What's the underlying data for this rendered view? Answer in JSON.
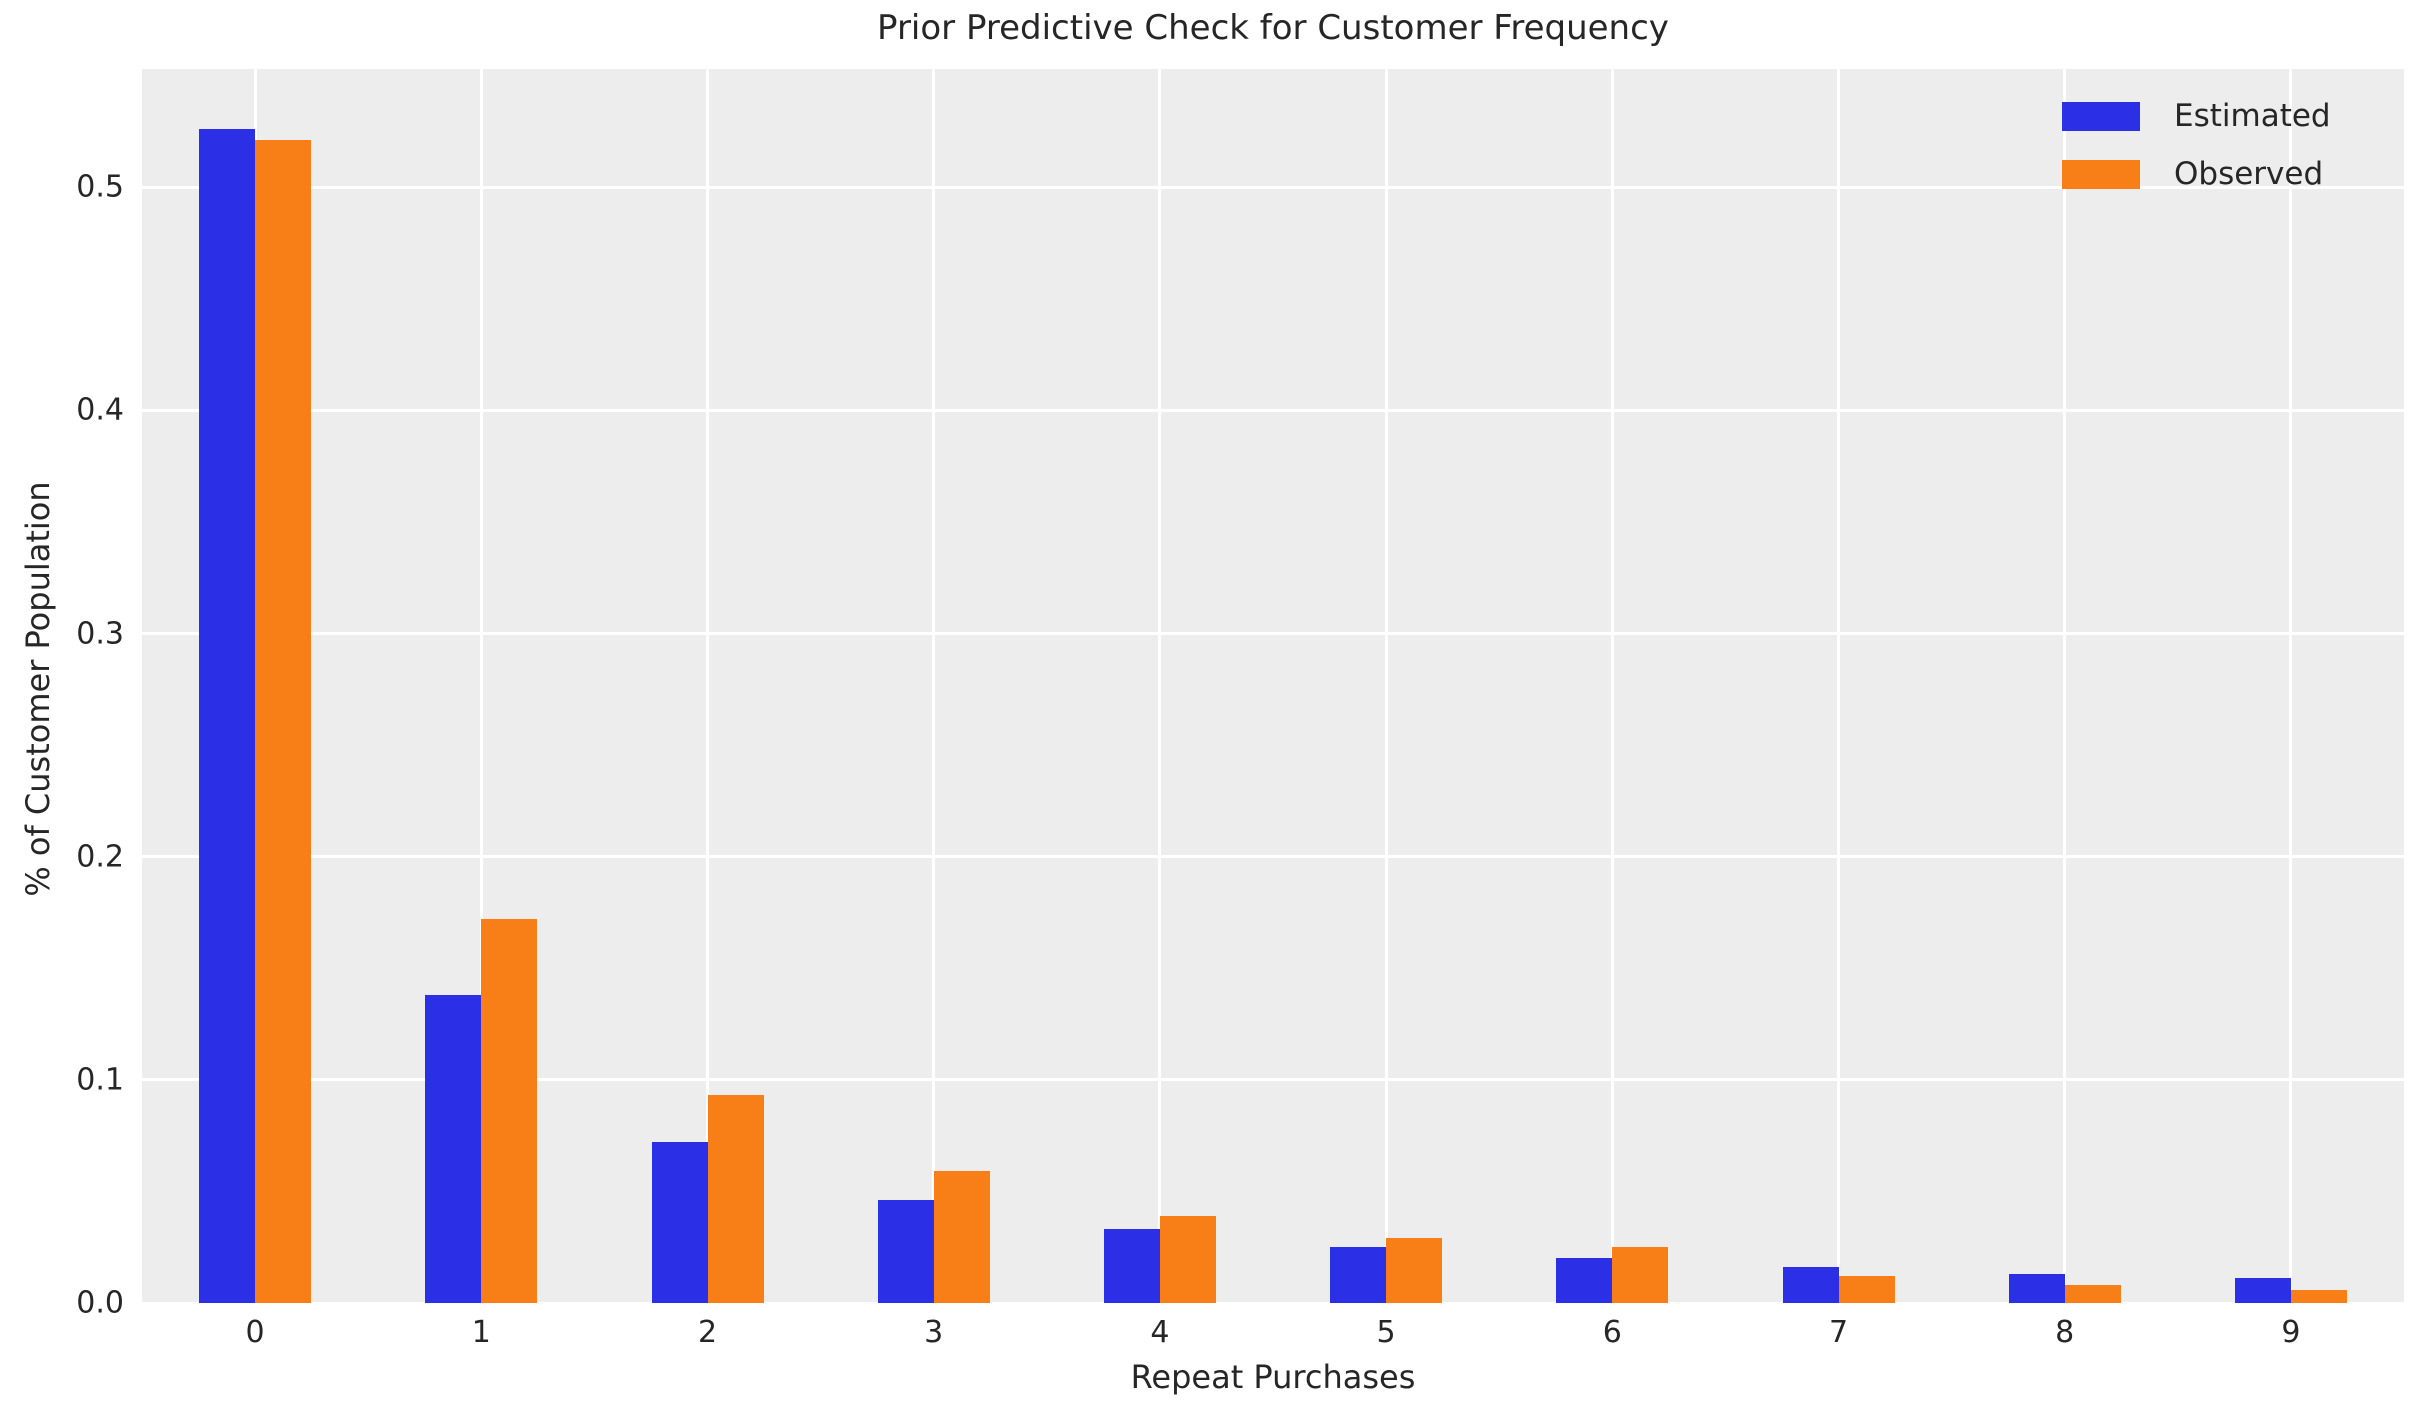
{
  "chart_data": {
    "type": "bar",
    "title": "Prior Predictive Check for Customer Frequency",
    "xlabel": "Repeat Purchases",
    "ylabel": "% of Customer Population",
    "categories": [
      "0",
      "1",
      "2",
      "3",
      "4",
      "5",
      "6",
      "7",
      "8",
      "9"
    ],
    "series": [
      {
        "name": "Estimated",
        "color": "#2b2fe5",
        "values": [
          0.526,
          0.138,
          0.072,
          0.046,
          0.033,
          0.025,
          0.02,
          0.016,
          0.013,
          0.011
        ]
      },
      {
        "name": "Observed",
        "color": "#f87e17",
        "values": [
          0.521,
          0.172,
          0.093,
          0.059,
          0.039,
          0.029,
          0.025,
          0.012,
          0.008,
          0.006
        ]
      }
    ],
    "ytick_labels": [
      "0.0",
      "0.1",
      "0.2",
      "0.3",
      "0.4",
      "0.5"
    ],
    "yticks": [
      0.0,
      0.1,
      0.2,
      0.3,
      0.4,
      0.5
    ],
    "ylim": [
      0,
      0.553
    ],
    "grid": true,
    "legend_position": "upper right",
    "plot_bg_color": "#ededed",
    "grid_color": "#ffffff",
    "text_color": "#262626"
  }
}
